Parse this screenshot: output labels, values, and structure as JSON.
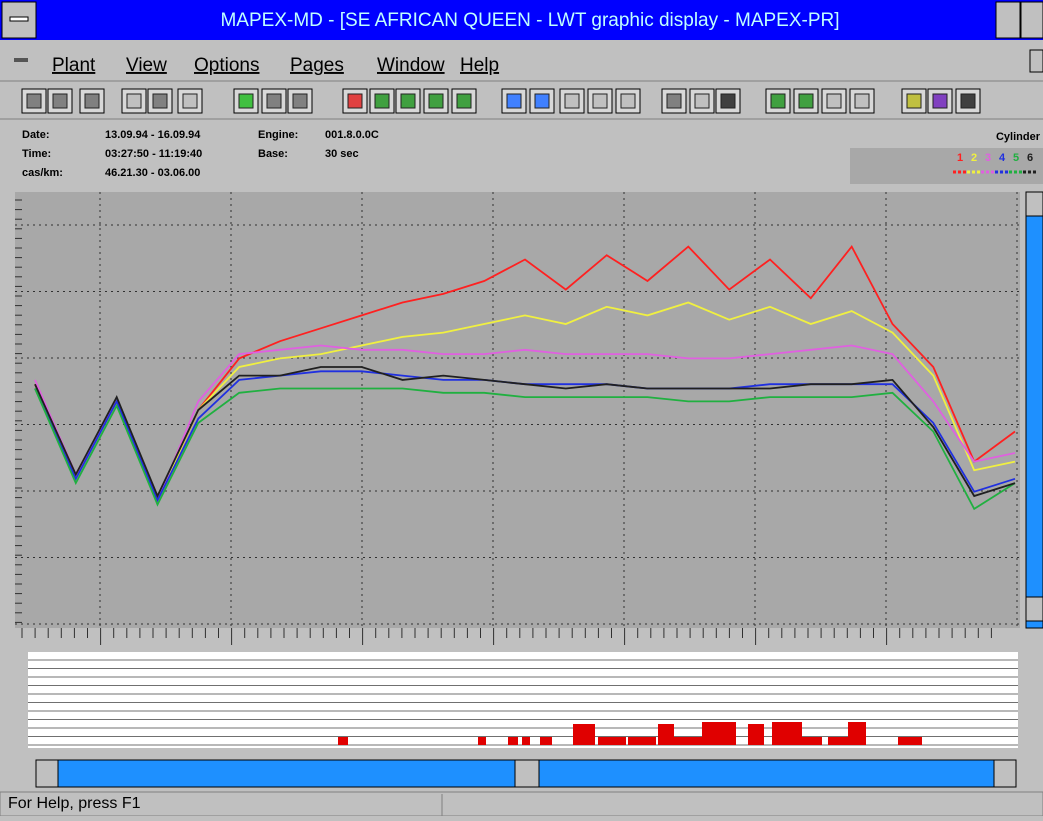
{
  "window": {
    "title": "MAPEX-MD - [SE AFRICAN QUEEN - LWT graphic display - MAPEX-PR]"
  },
  "menu": [
    "Plant",
    "View",
    "Options",
    "Pages",
    "Window",
    "Help"
  ],
  "info": {
    "date_label": "Date:",
    "date": "13.09.94 - 16.09.94",
    "time_label": "Time:",
    "time": "03:27:50 - 11:19:40",
    "pos_label": "cas/km:",
    "pos": "46.21.30 - 03.06.00",
    "engine_label": "Engine:",
    "engine": "001.8.0.0C",
    "base_label": "Base:",
    "base": "30 sec",
    "cylinder_label": "Cylinder"
  },
  "chart_data": {
    "type": "line",
    "ylim": [
      0,
      100
    ],
    "grid": true,
    "series": [
      {
        "name": "1",
        "color": "#ff2020",
        "values": [
          56,
          35,
          52,
          29,
          50,
          62,
          66,
          69,
          72,
          75,
          77,
          80,
          85,
          78,
          86,
          80,
          88,
          78,
          85,
          76,
          88,
          70,
          60,
          38,
          45
        ]
      },
      {
        "name": "2",
        "color": "#f0f040",
        "values": [
          55,
          34,
          52,
          29,
          50,
          60,
          62,
          63,
          65,
          67,
          68,
          70,
          72,
          70,
          74,
          72,
          75,
          71,
          74,
          70,
          73,
          68,
          58,
          36,
          38
        ]
      },
      {
        "name": "3",
        "color": "#e060e0",
        "values": [
          57,
          35,
          52,
          29,
          52,
          63,
          64,
          65,
          64,
          64,
          63,
          63,
          64,
          63,
          63,
          63,
          62,
          62,
          63,
          64,
          65,
          63,
          52,
          38,
          40
        ]
      },
      {
        "name": "4",
        "color": "#2030e0",
        "values": [
          55,
          34,
          52,
          29,
          48,
          57,
          58,
          59,
          59,
          58,
          57,
          57,
          56,
          56,
          56,
          55,
          55,
          55,
          56,
          56,
          56,
          56,
          47,
          31,
          34
        ]
      },
      {
        "name": "5",
        "color": "#20b040",
        "values": [
          55,
          33,
          51,
          28,
          47,
          54,
          55,
          55,
          55,
          55,
          54,
          54,
          53,
          53,
          53,
          53,
          52,
          52,
          53,
          53,
          53,
          54,
          45,
          27,
          33
        ]
      },
      {
        "name": "6",
        "color": "#202020",
        "values": [
          56,
          35,
          53,
          30,
          50,
          58,
          58,
          60,
          60,
          57,
          58,
          57,
          56,
          55,
          56,
          55,
          55,
          55,
          55,
          56,
          56,
          57,
          46,
          30,
          33
        ]
      }
    ]
  },
  "status": "For Help, press F1"
}
